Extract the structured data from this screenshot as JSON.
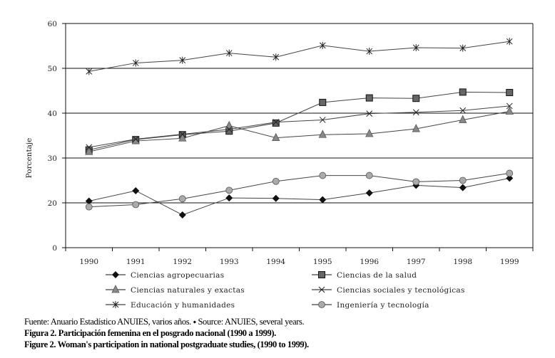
{
  "chart_data": {
    "type": "line",
    "title": "",
    "xlabel": "",
    "ylabel": "Porcentaje",
    "categories": [
      "1990",
      "1991",
      "1992",
      "1993",
      "1994",
      "1995",
      "1996",
      "1997",
      "1998",
      "1999"
    ],
    "ytick_labels": [
      "0",
      "20",
      "30",
      "40",
      "50",
      "60"
    ],
    "grid": "horizontal",
    "legend": "bottom",
    "series": [
      {
        "name": "Ciencias agropecuarias",
        "marker": "diamond",
        "color": "#111111",
        "values": [
          20.4,
          22.7,
          17.3,
          21.1,
          21.0,
          20.7,
          22.2,
          23.9,
          23.4,
          25.5
        ]
      },
      {
        "name": "Ciencias de la salud",
        "marker": "square",
        "color": "#666666",
        "values": [
          31.8,
          34.1,
          35.2,
          36.0,
          37.8,
          42.4,
          43.4,
          43.3,
          44.7,
          44.6
        ]
      },
      {
        "name": "Ciencias naturales y exactas",
        "marker": "triangle",
        "color": "#888888",
        "values": [
          31.4,
          33.8,
          34.4,
          37.2,
          34.5,
          35.2,
          35.4,
          36.5,
          38.5,
          40.4
        ]
      },
      {
        "name": "Ciencias sociales y tecnológicas",
        "marker": "x",
        "color": "#333333",
        "values": [
          32.4,
          34.2,
          35.3,
          36.4,
          38.0,
          38.5,
          39.9,
          40.2,
          40.6,
          41.6
        ]
      },
      {
        "name": "Educación y humanidades",
        "marker": "asterisk",
        "color": "#333333",
        "values": [
          49.3,
          51.2,
          51.8,
          53.4,
          52.5,
          55.1,
          53.8,
          54.6,
          54.5,
          56.0
        ]
      },
      {
        "name": "Ingeniería y tecnología",
        "marker": "circle",
        "color": "#aaaaaa",
        "values": [
          19.1,
          19.6,
          20.9,
          22.8,
          24.8,
          26.1,
          26.1,
          24.7,
          25.0,
          26.6
        ]
      }
    ]
  },
  "caption": {
    "source": "Fuente: Anuario Estadístico ANUIES, varios años. ⬩ Source: ANUIES, several years.",
    "title_es": "Figura 2. Participación femenina en el posgrado nacional (1990 a 1999).",
    "title_en": "Figure 2. Woman's participation in national postgraduate studies, (1990 to 1999)."
  }
}
